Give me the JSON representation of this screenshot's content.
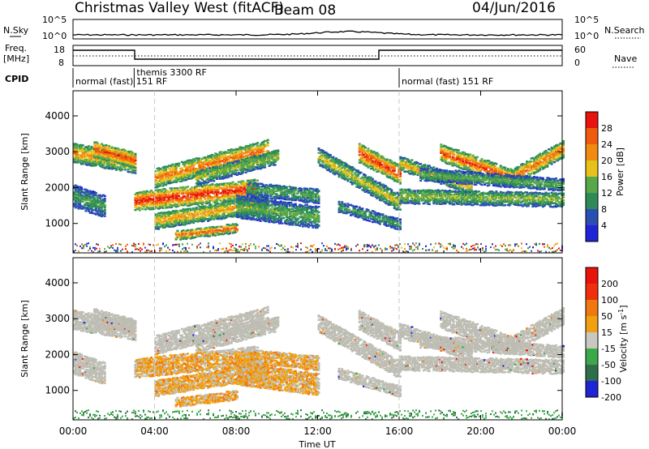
{
  "header": {
    "site": "Christmas Valley West (fitACF)",
    "beam": "Beam 08",
    "date": "04/Jun/2016"
  },
  "summary": {
    "nsky_label": "N.Sky",
    "nsearch_label": "N.Search",
    "freq_label_1": "Freq.",
    "freq_label_2": "[MHz]",
    "nave_label": "Nave",
    "cpid_label": "CPID",
    "noise_ticks_top": "10^5",
    "noise_ticks_bottom": "10^0",
    "freq_ticks": [
      "18",
      "8"
    ],
    "nave_ticks": [
      "60",
      "0"
    ]
  },
  "cpid_segments": [
    {
      "label": "normal (fast) 151 RF",
      "start_hour": 0.0
    },
    {
      "label": "themis 3300 RF",
      "start_hour": 3.0
    },
    {
      "label": "normal (fast) 151 RF",
      "start_hour": 16.0
    }
  ],
  "colors": {
    "power_scale": [
      "#1f24d6",
      "#2a4fb3",
      "#2e8b57",
      "#58a84a",
      "#e8c21a",
      "#f08a10",
      "#f05a0c",
      "#e8140c"
    ],
    "velocity_scale": [
      "#1f24d6",
      "#2e6e4a",
      "#3da84a",
      "#c8c8c0",
      "#f0a010",
      "#f07810",
      "#f0300c",
      "#e8140c"
    ],
    "ground_scatter": "#bdbdb4"
  },
  "chart_data": [
    {
      "type": "heatmap",
      "ylabel": "Slant Range [km]",
      "xlabel": "",
      "x_ticks": [
        "00:00",
        "04:00",
        "08:00",
        "12:00",
        "16:00",
        "20:00",
        "00:00"
      ],
      "y_ticks": [
        "1000",
        "2000",
        "3000",
        "4000"
      ],
      "xlim_hours": [
        0,
        24
      ],
      "ylim_km": [
        180,
        4700
      ],
      "colorbar_label": "Power [dB]",
      "colorbar_ticks": [
        "4",
        "8",
        "12",
        "16",
        "20",
        "24",
        "28"
      ],
      "colorbar_range": [
        0,
        30
      ],
      "grid_vertical_hours": [
        4,
        16
      ]
    },
    {
      "type": "heatmap",
      "ylabel": "Slant Range [km]",
      "xlabel": "Time UT",
      "x_ticks": [
        "00:00",
        "04:00",
        "08:00",
        "12:00",
        "16:00",
        "20:00",
        "00:00"
      ],
      "y_ticks": [
        "1000",
        "2000",
        "3000",
        "4000"
      ],
      "xlim_hours": [
        0,
        24
      ],
      "ylim_km": [
        180,
        4700
      ],
      "colorbar_label": "Velocity [m s-1]",
      "colorbar_ticks": [
        "200",
        "100",
        "50",
        "15",
        "-15",
        "-50",
        "-100",
        "-200"
      ],
      "grid_vertical_hours": [
        4,
        16
      ]
    }
  ]
}
